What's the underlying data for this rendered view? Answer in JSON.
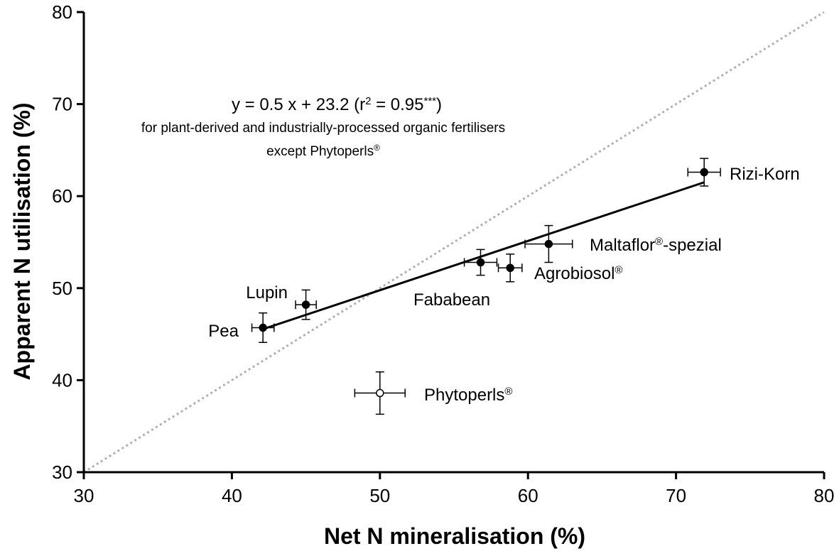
{
  "chart_data": {
    "type": "scatter",
    "xlabel": "Net N mineralisation (%)",
    "ylabel": "Apparent N utilisation (%)",
    "xlim": [
      30,
      80
    ],
    "ylim": [
      30,
      80
    ],
    "xticks": [
      30,
      40,
      50,
      60,
      70,
      80
    ],
    "yticks": [
      30,
      40,
      50,
      60,
      70,
      80
    ],
    "labels": [
      [
        {
          "text": "Pea"
        }
      ],
      [
        {
          "text": "Lupin"
        }
      ],
      [
        {
          "text": "Fababean"
        }
      ],
      [
        {
          "text": "Agrobiosol"
        },
        {
          "text": "®",
          "sup": true
        }
      ],
      [
        {
          "text": "Maltaflor"
        },
        {
          "text": "®",
          "sup": true
        },
        {
          "text": "-spezial"
        }
      ],
      [
        {
          "text": "Rizi-Korn"
        }
      ],
      [
        {
          "text": "Phytoperls"
        },
        {
          "text": "®",
          "sup": true
        }
      ]
    ],
    "x": [
      42.1,
      45.0,
      56.8,
      58.8,
      61.4,
      71.9,
      50.0
    ],
    "xerr": [
      0.75,
      0.7,
      1.1,
      0.8,
      1.6,
      1.1,
      1.7
    ],
    "y": [
      45.7,
      48.2,
      52.8,
      52.2,
      54.8,
      62.6,
      38.6
    ],
    "yerr": [
      1.6,
      1.6,
      1.4,
      1.5,
      2.0,
      1.5,
      2.3
    ],
    "colors": [
      "#000000",
      "#000000",
      "#000000",
      "#000000",
      "#000000",
      "#000000",
      "#ffffff"
    ],
    "fit_line": {
      "x": [
        42.2,
        71.9
      ],
      "y": [
        45.6,
        61.5
      ],
      "color": "#000000"
    },
    "reference_line": {
      "x": [
        30,
        80
      ],
      "y": [
        30,
        80
      ],
      "color": "#b0b0b0"
    },
    "annotations": [
      [
        {
          "text": "y = 0.5 x + 23.2   (r"
        },
        {
          "text": "2",
          "sup": true
        },
        {
          "text": " = 0.95"
        },
        {
          "text": "***",
          "sup": true
        },
        {
          "text": ")"
        }
      ],
      [
        {
          "text": "for plant-derived and industrially-processed organic fertilisers"
        }
      ],
      [
        {
          "text": "except Phytoperls"
        },
        {
          "text": "®",
          "sup": true
        }
      ]
    ]
  }
}
